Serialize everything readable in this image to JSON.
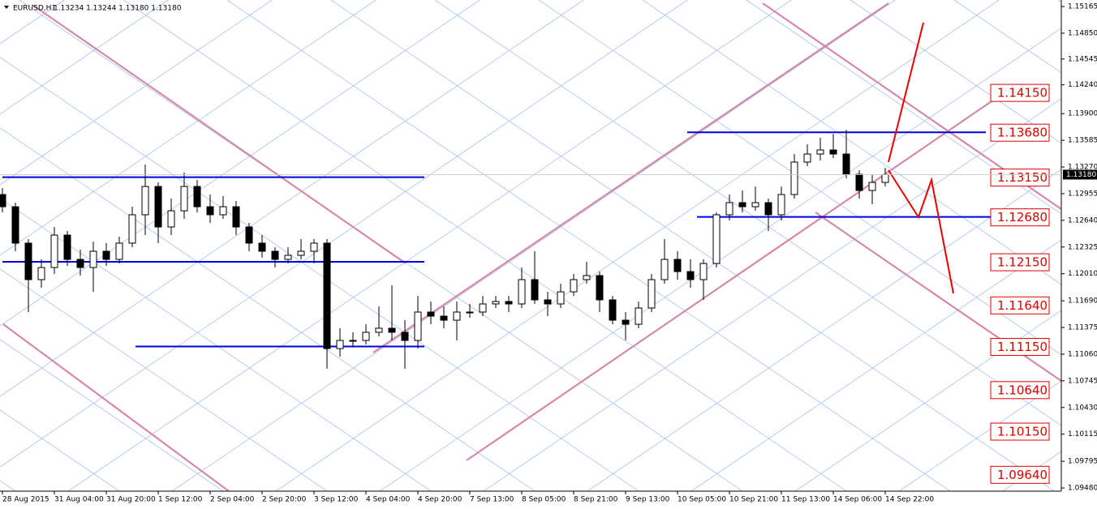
{
  "chart_data": {
    "type": "candlestick",
    "title": "EURUSD,H1",
    "ohlc_text": "1.13234 1.13244 1.13180 1.13180",
    "x": [
      0,
      4,
      8,
      12,
      16,
      20,
      24,
      28,
      32,
      36,
      40,
      44,
      48,
      52,
      56,
      60,
      64,
      68,
      72,
      76,
      80,
      84,
      88,
      92,
      96,
      100,
      104,
      108,
      112,
      116,
      120,
      124,
      128,
      132,
      136,
      140,
      144,
      148,
      152,
      156,
      160,
      164,
      168,
      172,
      176,
      180,
      184,
      188,
      192,
      196,
      200,
      204,
      208,
      212,
      216,
      220,
      224,
      228,
      232,
      236,
      240,
      244,
      248,
      252,
      256,
      260,
      264,
      268,
      272
    ],
    "open": [
      1.12945,
      1.12801,
      1.12371,
      1.1194,
      1.12083,
      1.12466,
      1.12179,
      1.12083,
      1.12275,
      1.12179,
      1.12371,
      1.12706,
      1.1304,
      1.12562,
      1.12753,
      1.1304,
      1.12801,
      1.12706,
      1.12801,
      1.12562,
      1.12371,
      1.12275,
      1.12179,
      1.12227,
      1.12275,
      1.12371,
      1.11126,
      1.11222,
      1.11222,
      1.11318,
      1.11366,
      1.11318,
      1.11222,
      1.11557,
      1.11509,
      1.11461,
      1.11557,
      1.11557,
      1.11653,
      1.11682,
      1.11653,
      1.1194,
      1.11701,
      1.11653,
      1.11796,
      1.1194,
      1.11988,
      1.11701,
      1.11461,
      1.11413,
      1.11605,
      1.1194,
      1.12179,
      1.12035,
      1.1194,
      1.12131,
      1.12706,
      1.12849,
      1.12801,
      1.12849,
      1.12706,
      1.12945,
      1.13328,
      1.13423,
      1.13471,
      1.13423,
      1.13184,
      1.12993,
      1.13088
    ],
    "high": [
      1.13021,
      1.12849,
      1.12418,
      1.12179,
      1.12562,
      1.12514,
      1.12294,
      1.12389,
      1.12371,
      1.12447,
      1.12801,
      1.13299,
      1.13088,
      1.12897,
      1.13203,
      1.13117,
      1.12945,
      1.12926,
      1.12868,
      1.1261,
      1.12466,
      1.12323,
      1.12323,
      1.12418,
      1.12418,
      1.12418,
      1.11366,
      1.11318,
      1.11413,
      1.11624,
      1.11873,
      1.11461,
      1.11748,
      1.11682,
      1.11624,
      1.11682,
      1.11653,
      1.11748,
      1.11748,
      1.11748,
      1.12083,
      1.12275,
      1.11796,
      1.11892,
      1.12007,
      1.1215,
      1.12035,
      1.11748,
      1.11557,
      1.11682,
      1.12007,
      1.12418,
      1.12275,
      1.12179,
      1.12179,
      1.12734,
      1.12945,
      1.12993,
      1.1304,
      1.12897,
      1.1304,
      1.13423,
      1.13538,
      1.13615,
      1.13662,
      1.1371,
      1.13232,
      1.13184,
      1.13261
    ],
    "low": [
      1.12734,
      1.12275,
      1.11557,
      1.11844,
      1.12007,
      1.12102,
      1.11988,
      1.11796,
      1.12102,
      1.12131,
      1.12323,
      1.12466,
      1.12371,
      1.12466,
      1.12658,
      1.12734,
      1.1261,
      1.12658,
      1.12466,
      1.12275,
      1.12198,
      1.12083,
      1.12131,
      1.12179,
      1.12131,
      1.10887,
      1.11031,
      1.11145,
      1.11174,
      1.1127,
      1.11222,
      1.10887,
      1.11126,
      1.11413,
      1.11366,
      1.11222,
      1.1149,
      1.11509,
      1.11605,
      1.11557,
      1.11605,
      1.11653,
      1.11509,
      1.11605,
      1.11748,
      1.11892,
      1.11557,
      1.11413,
      1.11222,
      1.11366,
      1.11557,
      1.11892,
      1.1194,
      1.11844,
      1.11701,
      1.12083,
      1.12638,
      1.12734,
      1.12753,
      1.12514,
      1.12638,
      1.12897,
      1.1328,
      1.13347,
      1.13375,
      1.13136,
      1.12897,
      1.1283,
      1.1304
    ],
    "close": [
      1.12801,
      1.12371,
      1.1194,
      1.12083,
      1.12466,
      1.12179,
      1.12083,
      1.12275,
      1.12179,
      1.12371,
      1.12706,
      1.1304,
      1.12562,
      1.12753,
      1.1304,
      1.12801,
      1.12706,
      1.12801,
      1.12562,
      1.12371,
      1.12275,
      1.12179,
      1.12227,
      1.12275,
      1.12371,
      1.11126,
      1.11222,
      1.11222,
      1.11318,
      1.11366,
      1.11318,
      1.11222,
      1.11557,
      1.11509,
      1.11461,
      1.11557,
      1.11557,
      1.11653,
      1.11682,
      1.11653,
      1.1194,
      1.11701,
      1.11653,
      1.11796,
      1.1194,
      1.11988,
      1.11701,
      1.11461,
      1.11413,
      1.11605,
      1.1194,
      1.12179,
      1.12035,
      1.1194,
      1.12131,
      1.12706,
      1.12849,
      1.12801,
      1.12849,
      1.12706,
      1.12945,
      1.13328,
      1.13423,
      1.13471,
      1.13423,
      1.13184,
      1.12993,
      1.13088,
      1.1318
    ],
    "up_color": "#ffffff",
    "down_color": "#000000",
    "wick_color": "#000000",
    "xlim": [
      -0.75,
      326.25
    ],
    "ylim": [
      1.09442,
      1.15242
    ],
    "xticks": [
      {
        "value": 0,
        "label": "28 Aug 2015"
      },
      {
        "value": 16,
        "label": "31 Aug 04:00"
      },
      {
        "value": 32,
        "label": "31 Aug 20:00"
      },
      {
        "value": 48,
        "label": "1 Sep 12:00"
      },
      {
        "value": 64,
        "label": "2 Sep 04:00"
      },
      {
        "value": 80,
        "label": "2 Sep 20:00"
      },
      {
        "value": 96,
        "label": "3 Sep 12:00"
      },
      {
        "value": 112,
        "label": "4 Sep 04:00"
      },
      {
        "value": 128,
        "label": "4 Sep 20:00"
      },
      {
        "value": 144,
        "label": "7 Sep 13:00"
      },
      {
        "value": 160,
        "label": "8 Sep 05:00"
      },
      {
        "value": 176,
        "label": "8 Sep 21:00"
      },
      {
        "value": 192,
        "label": "9 Sep 13:00"
      },
      {
        "value": 208,
        "label": "10 Sep 05:00"
      },
      {
        "value": 224,
        "label": "10 Sep 21:00"
      },
      {
        "value": 240,
        "label": "11 Sep 13:00"
      },
      {
        "value": 256,
        "label": "14 Sep 06:00"
      },
      {
        "value": 272,
        "label": "14 Sep 22:00"
      }
    ],
    "yticks": [
      {
        "value": 1.15165,
        "label": "1.15165"
      },
      {
        "value": 1.1485,
        "label": "1.14850"
      },
      {
        "value": 1.14545,
        "label": "1.14545"
      },
      {
        "value": 1.1424,
        "label": "1.14240"
      },
      {
        "value": 1.139,
        "label": "1.13900"
      },
      {
        "value": 1.13585,
        "label": "1.13585"
      },
      {
        "value": 1.1327,
        "label": "1.13270"
      },
      {
        "value": 1.12955,
        "label": "1.12955"
      },
      {
        "value": 1.1264,
        "label": "1.12640"
      },
      {
        "value": 1.12325,
        "label": "1.12325"
      },
      {
        "value": 1.1201,
        "label": "1.12010"
      },
      {
        "value": 1.1169,
        "label": "1.11690"
      },
      {
        "value": 1.11375,
        "label": "1.11375"
      },
      {
        "value": 1.1106,
        "label": "1.11060"
      },
      {
        "value": 1.10745,
        "label": "1.10745"
      },
      {
        "value": 1.1043,
        "label": "1.10430"
      },
      {
        "value": 1.10115,
        "label": "1.10115"
      },
      {
        "value": 1.09795,
        "label": "1.09795"
      },
      {
        "value": 1.0948,
        "label": "1.09480"
      }
    ],
    "current_price": {
      "value": 1.1318,
      "label": "1.13180"
    },
    "levels": [
      {
        "value": 1.1368,
        "from": 211,
        "to": 303
      },
      {
        "value": 1.1268,
        "from": 214,
        "to": 306
      },
      {
        "value": 1.1315,
        "from": 0,
        "to": 130
      },
      {
        "value": 1.1215,
        "from": 0,
        "to": 130
      },
      {
        "value": 1.1115,
        "from": 41,
        "to": 130
      }
    ],
    "level_color": "#0000dd",
    "level_labels": [
      {
        "value": 1.1415,
        "label": "1.14150"
      },
      {
        "value": 1.1368,
        "label": "1.13680"
      },
      {
        "value": 1.1315,
        "label": "1.13150"
      },
      {
        "value": 1.1268,
        "label": "1.12680"
      },
      {
        "value": 1.1215,
        "label": "1.12150"
      },
      {
        "value": 1.1164,
        "label": "1.11640"
      },
      {
        "value": 1.1115,
        "label": "1.11150"
      },
      {
        "value": 1.1064,
        "label": "1.10640"
      },
      {
        "value": 1.1015,
        "label": "1.10150"
      },
      {
        "value": 1.0964,
        "label": "1.09640"
      }
    ]
  }
}
